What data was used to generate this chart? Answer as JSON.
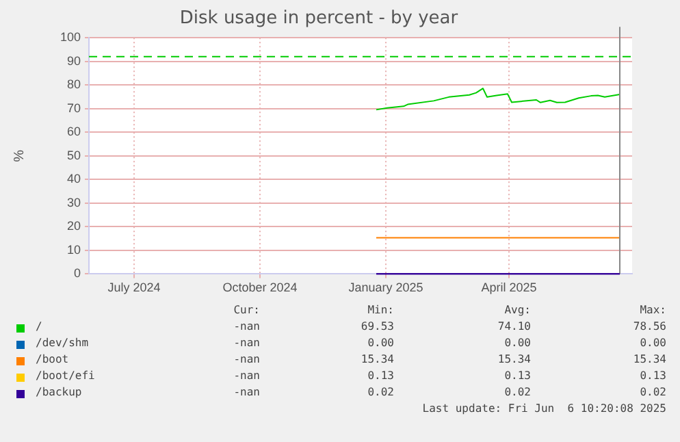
{
  "chart_data": {
    "type": "line",
    "title": "Disk usage in percent - by year",
    "ylabel": "%",
    "xlim": [
      "2024-05-29",
      "2025-06-30"
    ],
    "xticks": [
      {
        "value": "2024-07-01",
        "label": "July 2024"
      },
      {
        "value": "2024-10-01",
        "label": "October 2024"
      },
      {
        "value": "2025-01-01",
        "label": "January 2025"
      },
      {
        "value": "2025-04-01",
        "label": "April 2025"
      }
    ],
    "ylim": [
      0,
      100
    ],
    "yticks": [
      0,
      10,
      20,
      30,
      40,
      50,
      60,
      70,
      80,
      90,
      100
    ],
    "grid": true,
    "legend": "bottom",
    "marker": "none",
    "series": [
      {
        "name": "/",
        "color": "#00cc00",
        "x": [
          "2024-12-25",
          "2025-01-02",
          "2025-01-14",
          "2025-01-17",
          "2025-02-05",
          "2025-02-16",
          "2025-03-03",
          "2025-03-08",
          "2025-03-13",
          "2025-03-16",
          "2025-03-23",
          "2025-03-31",
          "2025-04-03",
          "2025-04-21",
          "2025-04-24",
          "2025-05-01",
          "2025-05-06",
          "2025-05-12",
          "2025-05-22",
          "2025-05-31",
          "2025-06-05",
          "2025-06-10",
          "2025-06-21"
        ],
        "values": [
          69.53,
          70.3,
          71,
          71.8,
          73.3,
          74.9,
          75.8,
          76.7,
          78.56,
          74.9,
          75.6,
          76.2,
          72.7,
          73.7,
          72.6,
          73.5,
          72.6,
          72.7,
          74.5,
          75.4,
          75.6,
          74.9,
          76
        ]
      },
      {
        "name": "/dev/shm",
        "color": "#0066b3",
        "values": [
          null,
          null
        ]
      },
      {
        "name": "/boot",
        "color": "#ff8000",
        "x": [
          "2024-12-25",
          "2025-06-21"
        ],
        "values": [
          15.34,
          15.34
        ]
      },
      {
        "name": "/boot/efi",
        "color": "#ffcc00",
        "values": [
          null,
          null
        ]
      },
      {
        "name": "/backup",
        "color": "#330099",
        "x": [
          "2024-12-25",
          "2025-06-21"
        ],
        "values": [
          0.02,
          0.02
        ]
      }
    ],
    "ref_lines": [
      {
        "axis": "y",
        "value": 92,
        "color": "#00cc00",
        "line_style": "dashed"
      },
      {
        "axis": "x",
        "value": "2025-06-21",
        "color": "#888888",
        "line_style": "solid"
      }
    ],
    "annotations": [
      "Cur:",
      "Min:",
      "Avg:",
      "Max:",
      "-nan",
      "69.53",
      "74.10",
      "78.56",
      "-nan",
      "0.00",
      "0.00",
      "0.00",
      "-nan",
      "15.34",
      "15.34",
      "15.34",
      "-nan",
      "0.13",
      "0.13",
      "0.13",
      "-nan",
      "0.02",
      "0.02",
      "0.02",
      "Last update: Fri Jun  6 10:20:08 2025"
    ]
  }
}
